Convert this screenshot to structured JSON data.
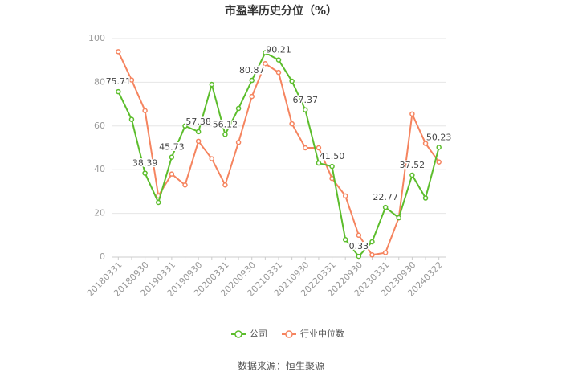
{
  "chart_data": {
    "type": "line",
    "title": "市盈率历史分位（%）",
    "categories": [
      "20180331",
      null,
      "20180930",
      null,
      "20190331",
      null,
      "20190930",
      null,
      "20200331",
      null,
      "20200930",
      null,
      "20210331",
      null,
      "20210930",
      null,
      "20220331",
      null,
      "20220930",
      null,
      "20230331",
      null,
      "20230930",
      null,
      "20240322"
    ],
    "series": [
      {
        "name": "公司",
        "color": "#5cbd2c",
        "values": [
          75.71,
          63,
          38.39,
          25,
          45.73,
          60,
          57.38,
          79,
          56.12,
          68,
          80.87,
          93.5,
          90.21,
          80.5,
          67.37,
          43,
          41.5,
          8,
          0.33,
          7,
          22.77,
          18,
          37.52,
          27,
          50.23
        ],
        "value_labels": [
          "75.71",
          null,
          "38.39",
          null,
          "45.73",
          null,
          "57.38",
          null,
          "56.12",
          null,
          "80.87",
          null,
          "90.21",
          null,
          "67.37",
          null,
          "41.50",
          null,
          "0.33",
          null,
          "22.77",
          null,
          "37.52",
          null,
          "50.23"
        ]
      },
      {
        "name": "行业中位数",
        "color": "#f5845f",
        "values": [
          94,
          81,
          67,
          28,
          38,
          33,
          53,
          45,
          33,
          52.5,
          73.5,
          88.5,
          84.5,
          61,
          50,
          50,
          36,
          28,
          10,
          1,
          2,
          18,
          65.5,
          52,
          43.5
        ]
      }
    ],
    "ylim": [
      0,
      100
    ],
    "yticks": [
      0,
      20,
      40,
      60,
      80,
      100
    ],
    "grid": true,
    "legend": "bottom",
    "source": "数据来源：恒生聚源"
  }
}
